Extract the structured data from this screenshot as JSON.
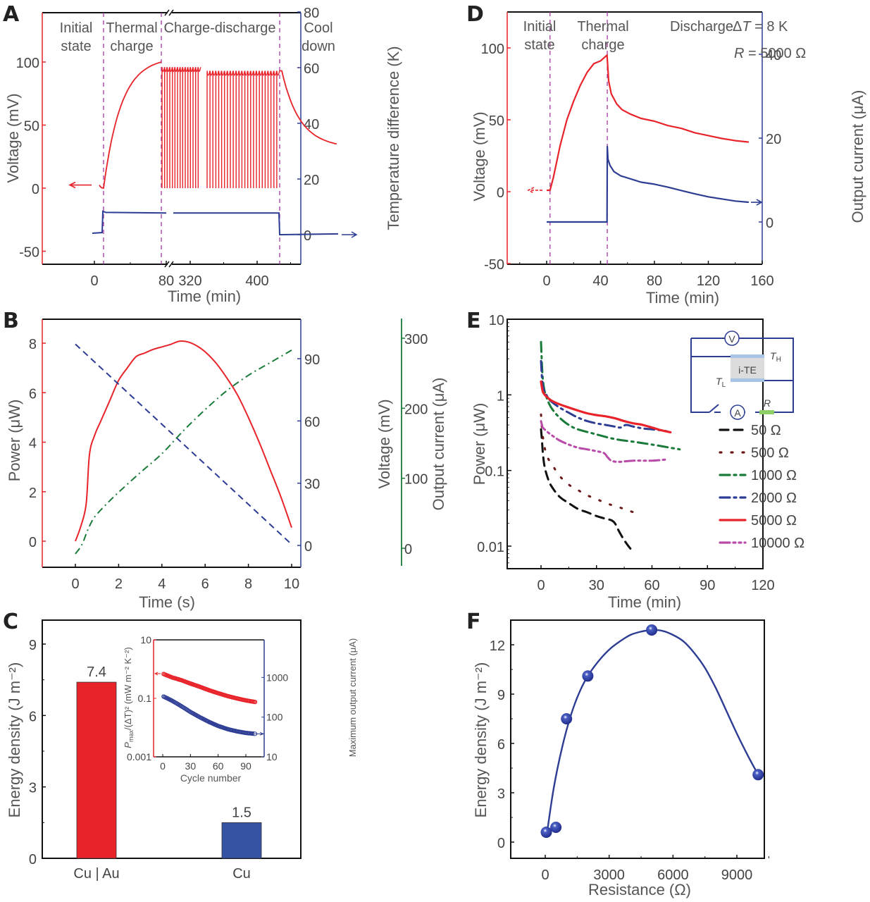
{
  "figure": {
    "panel_labels": [
      "A",
      "B",
      "C",
      "D",
      "E",
      "F"
    ]
  },
  "colors": {
    "red": "#e8232a",
    "blue": "#2e3d94",
    "green": "#1a7a3a",
    "magenta_dash": "#a33b9c",
    "darkred_dot": "#6b1a1a",
    "black": "#111111",
    "purple": "#b84aa8",
    "bar_blue": "#3552a5"
  },
  "chart_data": [
    {
      "id": "A",
      "type": "line",
      "title": "",
      "xlabel": "Time (min)",
      "ylabel": "Voltage (mV)",
      "y2label": "Temperature difference (K)",
      "x_ticks": [
        "0",
        "80",
        "320",
        "400"
      ],
      "x_axis_break": "between 80 and 320",
      "y_ticks": [
        "-50",
        "0",
        "50",
        "100"
      ],
      "y2_ticks": [
        "0",
        "20",
        "40",
        "60",
        "80"
      ],
      "ylim": [
        -60,
        130
      ],
      "y2lim": [
        -10,
        80
      ],
      "regions": [
        "Initial state",
        "Thermal charge",
        "Charge-discharge",
        "Cool down"
      ],
      "region_boundaries_min": [
        10,
        72,
        372
      ],
      "series": [
        {
          "name": "Voltage",
          "axis": "left",
          "color": "red",
          "description": "rises from 0 to ~100 mV during thermal charge, then ~15 + ~25 charge-discharge cycles oscillating between 0 and ~95 mV, then decays to ~35 mV during cool down",
          "thermal_charge_peak": 100,
          "cycle_peak_first_block": 96,
          "cycle_peak_second_block": 93,
          "cycle_min": 0,
          "cycles_first_block": 15,
          "cycles_second_block": 25,
          "final_value": 35
        },
        {
          "name": "Temperature difference",
          "axis": "right",
          "color": "blue",
          "description": "steps from ~0 K to ~8 K at start of thermal charge, stays ~8 K, drops back to ~0 K at cool down",
          "low": 0.5,
          "high": 8
        }
      ]
    },
    {
      "id": "B",
      "type": "line",
      "xlabel": "Time (s)",
      "ylabel": "Power (μW)",
      "y2label": "Voltage (mV)",
      "y3label": "Output current (μA)",
      "x_ticks": [
        "0",
        "2",
        "4",
        "6",
        "8",
        "10"
      ],
      "y_ticks": [
        "0",
        "2",
        "4",
        "6",
        "8"
      ],
      "y2_ticks": [
        "0",
        "30",
        "60",
        "90"
      ],
      "y3_ticks": [
        "0",
        "100",
        "200",
        "300"
      ],
      "xlim": [
        -1,
        11
      ],
      "ylim": [
        -1,
        9
      ],
      "y2lim": [
        -3.5,
        110
      ],
      "y3lim": [
        -30,
        330
      ],
      "series": [
        {
          "name": "Power",
          "axis": "left",
          "color": "red",
          "style": "solid",
          "x": [
            0,
            0.25,
            0.5,
            0.65,
            0.9,
            1.2,
            1.6,
            2.0,
            2.4,
            2.8,
            3.2,
            3.6,
            4.0,
            4.4,
            4.8,
            5.2,
            5.6,
            6.0,
            6.5,
            7.0,
            7.5,
            8.0,
            8.5,
            9.0,
            9.5,
            10.0
          ],
          "y": [
            0,
            0.6,
            1.5,
            3.5,
            4.3,
            4.9,
            5.7,
            6.5,
            7.0,
            7.45,
            7.6,
            7.75,
            7.85,
            7.95,
            8.08,
            8.05,
            7.9,
            7.65,
            7.2,
            6.6,
            5.9,
            5.0,
            4.0,
            2.9,
            1.8,
            0.55
          ]
        },
        {
          "name": "Voltage",
          "axis": "right",
          "color": "blue",
          "style": "dashed",
          "x": [
            0,
            10
          ],
          "y": [
            97,
            0.5
          ]
        },
        {
          "name": "Output current",
          "axis": "right2",
          "color": "green",
          "style": "dash-dot",
          "x": [
            0,
            0.3,
            0.6,
            0.9,
            1.5,
            2.0,
            3.0,
            4.0,
            5.0,
            6.0,
            7.0,
            8.0,
            9.0,
            10.0
          ],
          "y": [
            -8,
            5,
            28,
            45,
            65,
            80,
            108,
            135,
            168,
            198,
            225,
            247,
            265,
            283
          ]
        }
      ]
    },
    {
      "id": "C",
      "type": "bar",
      "ylabel": "Energy density (J m⁻²)",
      "categories": [
        "Cu | Au",
        "Cu"
      ],
      "values": [
        7.4,
        1.5
      ],
      "data_labels": [
        "7.4",
        "1.5"
      ],
      "bar_colors": [
        "red",
        "bar_blue"
      ],
      "y_ticks": [
        "0",
        "3",
        "6",
        "9"
      ],
      "ylim": [
        0,
        10
      ],
      "inset": {
        "type": "scatter",
        "xlabel": "Cycle number",
        "ylabel": "P_max/(ΔT)² (mW m⁻² K⁻²)",
        "ylabel_main": "P",
        "ylabel_sub": "max",
        "ylabel_rest": "/(ΔT)² (mW m⁻² K⁻²)",
        "y2label": "Maximum output current (μA)",
        "x_ticks": [
          "0",
          "30",
          "60",
          "90"
        ],
        "y_ticks": [
          "0.001",
          "0.1",
          "10"
        ],
        "y2_ticks": [
          "10",
          "100",
          "1000"
        ],
        "xlim": [
          -10,
          110
        ],
        "ylim_log": [
          0.001,
          10
        ],
        "y2lim_log": [
          10,
          10000
        ],
        "series": [
          {
            "name": "Pmax/(ΔT)²",
            "axis": "left",
            "color": "red",
            "x": [
              1,
              10,
              20,
              30,
              40,
              50,
              60,
              70,
              80,
              90,
              100
            ],
            "y": [
              0.68,
              0.52,
              0.42,
              0.32,
              0.25,
              0.19,
              0.15,
              0.12,
              0.1,
              0.085,
              0.075
            ]
          },
          {
            "name": "Maximum output current",
            "axis": "right",
            "color": "blue",
            "x": [
              1,
              10,
              20,
              30,
              40,
              50,
              60,
              70,
              80,
              90,
              100
            ],
            "y": [
              330,
              260,
              190,
              135,
              100,
              76,
              60,
              50,
              44,
              40,
              38
            ]
          }
        ]
      }
    },
    {
      "id": "D",
      "type": "line",
      "xlabel": "Time (min)",
      "ylabel": "Voltage (mV)",
      "y2label": "Output current (μA)",
      "x_ticks": [
        "0",
        "40",
        "80",
        "120",
        "160"
      ],
      "y_ticks": [
        "-50",
        "0",
        "50",
        "100"
      ],
      "y2_ticks": [
        "0",
        "20",
        "40"
      ],
      "xlim": [
        -30,
        160
      ],
      "ylim": [
        -50,
        125
      ],
      "y2lim": [
        -11,
        49
      ],
      "regions": [
        "Initial state",
        "Thermal charge",
        "Discharge"
      ],
      "region_boundaries_min": [
        2.5,
        45
      ],
      "annotations": [
        "ΔT = 8 K",
        "R = 5000 Ω"
      ],
      "annotation_dT_symbol": "Δ",
      "annotation_dT_var": "T",
      "annotation_dT_rest": " = 8 K",
      "annotation_R_var": "R",
      "annotation_R_rest": " = 5000 Ω",
      "series": [
        {
          "name": "Voltage",
          "axis": "left",
          "color": "red",
          "x": [
            0,
            2.5,
            5,
            10,
            15,
            20,
            25,
            30,
            35,
            40,
            44.8,
            45,
            46,
            48,
            52,
            56,
            62,
            70,
            80,
            90,
            100,
            110,
            120,
            130,
            140,
            150
          ],
          "y": [
            1,
            1,
            10,
            32,
            50,
            63,
            74,
            83,
            89,
            91,
            95,
            92,
            77,
            68,
            61,
            57,
            54,
            51,
            49,
            46,
            44,
            41,
            39,
            37,
            35.5,
            34.5
          ]
        },
        {
          "name": "Output current",
          "axis": "right",
          "color": "blue",
          "x": [
            0,
            44.8,
            45,
            45.5,
            47,
            50,
            55,
            60,
            70,
            80,
            90,
            100,
            110,
            120,
            130,
            140,
            150
          ],
          "y": [
            0,
            0,
            18,
            15,
            13.5,
            12,
            11,
            10.5,
            9.5,
            9,
            8.3,
            7.5,
            6.7,
            6,
            5.5,
            5,
            4.7
          ]
        }
      ]
    },
    {
      "id": "E",
      "type": "line",
      "xlabel": "Time (min)",
      "ylabel": "Power (μW)",
      "yscale": "log",
      "x_ticks": [
        "0",
        "30",
        "60",
        "90",
        "120"
      ],
      "y_ticks": [
        "0.01",
        "0.1",
        "1",
        "10"
      ],
      "xlim": [
        -10,
        120
      ],
      "ylim": [
        0.005,
        10
      ],
      "legend_position": "right",
      "inset_circuit_labels": {
        "voltmeter": "V",
        "ammeter": "A",
        "device": "i-TE",
        "hot": "T",
        "hot_sub": "H",
        "cold": "T",
        "cold_sub": "L",
        "resistor": "R"
      },
      "series": [
        {
          "name": "50 Ω",
          "color": "black",
          "style": "dashed",
          "x": [
            0,
            0.5,
            1,
            2,
            4,
            6,
            10,
            15,
            20,
            25,
            30,
            35,
            38,
            40,
            42,
            45,
            48,
            50
          ],
          "y": [
            0.35,
            0.25,
            0.17,
            0.11,
            0.075,
            0.06,
            0.045,
            0.037,
            0.031,
            0.028,
            0.025,
            0.023,
            0.022,
            0.02,
            0.016,
            0.012,
            0.0095,
            0.0085
          ]
        },
        {
          "name": "500 Ω",
          "color": "darkred_dot",
          "style": "dotted",
          "x": [
            0,
            1,
            3,
            6,
            10,
            15,
            20,
            25,
            30,
            35,
            40,
            45,
            50,
            52
          ],
          "y": [
            0.55,
            0.28,
            0.16,
            0.12,
            0.085,
            0.065,
            0.055,
            0.047,
            0.042,
            0.037,
            0.034,
            0.031,
            0.028,
            0.027
          ]
        },
        {
          "name": "1000 Ω",
          "color": "green",
          "style": "dash-dot",
          "x": [
            0,
            0.5,
            1,
            2,
            4,
            6,
            10,
            15,
            20,
            30,
            40,
            50,
            60,
            70,
            75
          ],
          "y": [
            5.0,
            2.5,
            1.6,
            1.1,
            0.8,
            0.65,
            0.5,
            0.4,
            0.35,
            0.3,
            0.26,
            0.24,
            0.22,
            0.2,
            0.19
          ]
        },
        {
          "name": "2000 Ω",
          "color": "blue",
          "style": "dash-dot",
          "x": [
            0,
            0.5,
            1,
            2,
            4,
            6,
            10,
            15,
            20,
            25,
            30,
            35,
            40,
            43,
            46,
            50,
            55,
            60,
            65,
            68
          ],
          "y": [
            2.8,
            1.7,
            1.3,
            1.1,
            0.9,
            0.8,
            0.68,
            0.58,
            0.5,
            0.45,
            0.42,
            0.4,
            0.38,
            0.37,
            0.4,
            0.38,
            0.36,
            0.35,
            0.34,
            0.33
          ]
        },
        {
          "name": "5000 Ω",
          "color": "red",
          "style": "solid",
          "x": [
            0,
            0.5,
            1,
            2,
            4,
            6,
            10,
            15,
            20,
            25,
            30,
            35,
            40,
            45,
            50,
            53,
            55,
            60,
            65,
            70
          ],
          "y": [
            1.5,
            1.25,
            1.1,
            1.0,
            0.9,
            0.83,
            0.75,
            0.68,
            0.62,
            0.57,
            0.54,
            0.52,
            0.49,
            0.45,
            0.42,
            0.41,
            0.4,
            0.37,
            0.34,
            0.32
          ]
        },
        {
          "name": "10000 Ω",
          "color": "purple",
          "style": "dash-dot-dot",
          "x": [
            0,
            0.5,
            1,
            3,
            6,
            10,
            15,
            20,
            25,
            30,
            34,
            36,
            38,
            42,
            50,
            60,
            68
          ],
          "y": [
            0.45,
            0.4,
            0.37,
            0.33,
            0.29,
            0.25,
            0.22,
            0.2,
            0.19,
            0.18,
            0.17,
            0.15,
            0.135,
            0.13,
            0.135,
            0.135,
            0.14
          ]
        }
      ]
    },
    {
      "id": "F",
      "type": "scatter",
      "xlabel": "Resistance (Ω)",
      "ylabel": "Energy density (J m⁻²)",
      "x_ticks": [
        "0",
        "3000",
        "6000",
        "9000"
      ],
      "y_ticks": [
        "0",
        "3",
        "6",
        "9",
        "12"
      ],
      "xlim": [
        -1000,
        11000
      ],
      "ylim": [
        -1,
        13.5
      ],
      "points": {
        "x": [
          50,
          500,
          1000,
          2000,
          5000,
          10000
        ],
        "y": [
          0.6,
          0.9,
          7.5,
          10.1,
          12.9,
          4.1
        ]
      },
      "fit_curve": {
        "x": [
          100,
          400,
          800,
          1200,
          1600,
          2000,
          2500,
          3000,
          3500,
          4000,
          4500,
          5000,
          5500,
          6000,
          6500,
          7000,
          7500,
          8000,
          8500,
          9000,
          9500,
          10000
        ],
        "y": [
          0.7,
          3.3,
          5.8,
          7.7,
          9.1,
          10.1,
          11.0,
          11.7,
          12.2,
          12.6,
          12.8,
          12.9,
          12.85,
          12.6,
          12.2,
          11.5,
          10.6,
          9.4,
          8.0,
          6.6,
          5.3,
          4.1
        ]
      }
    }
  ]
}
